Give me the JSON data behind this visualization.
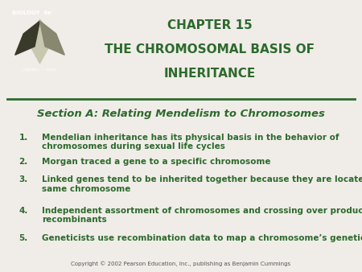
{
  "bg_color": "#f0ede8",
  "title_lines": [
    "CHAPTER 15",
    "THE CHROMOSOMAL BASIS OF",
    "INHERITANCE"
  ],
  "title_color": "#2d6a2d",
  "section_title": "Section A: Relating Mendelism to Chromosomes",
  "section_color": "#2d6a2d",
  "items": [
    "Mendelian inheritance has its physical basis in the behavior of\nchromosomes during sexual life cycles",
    "Morgan traced a gene to a specific chromosome",
    "Linked genes tend to be inherited together because they are located on the\nsame chromosome",
    "Independent assortment of chromosomes and crossing over produce genetic\nrecombinants",
    "Geneticists use recombination data to map a chromosome’s genetic loci"
  ],
  "item_color": "#2d6a2d",
  "copyright": "Copyright © 2002 Pearson Education, Inc., publishing as Benjamin Cummings",
  "copyright_color": "#555555",
  "logo_bg": "#1a4d1a",
  "line_color": "#2d6a2d"
}
